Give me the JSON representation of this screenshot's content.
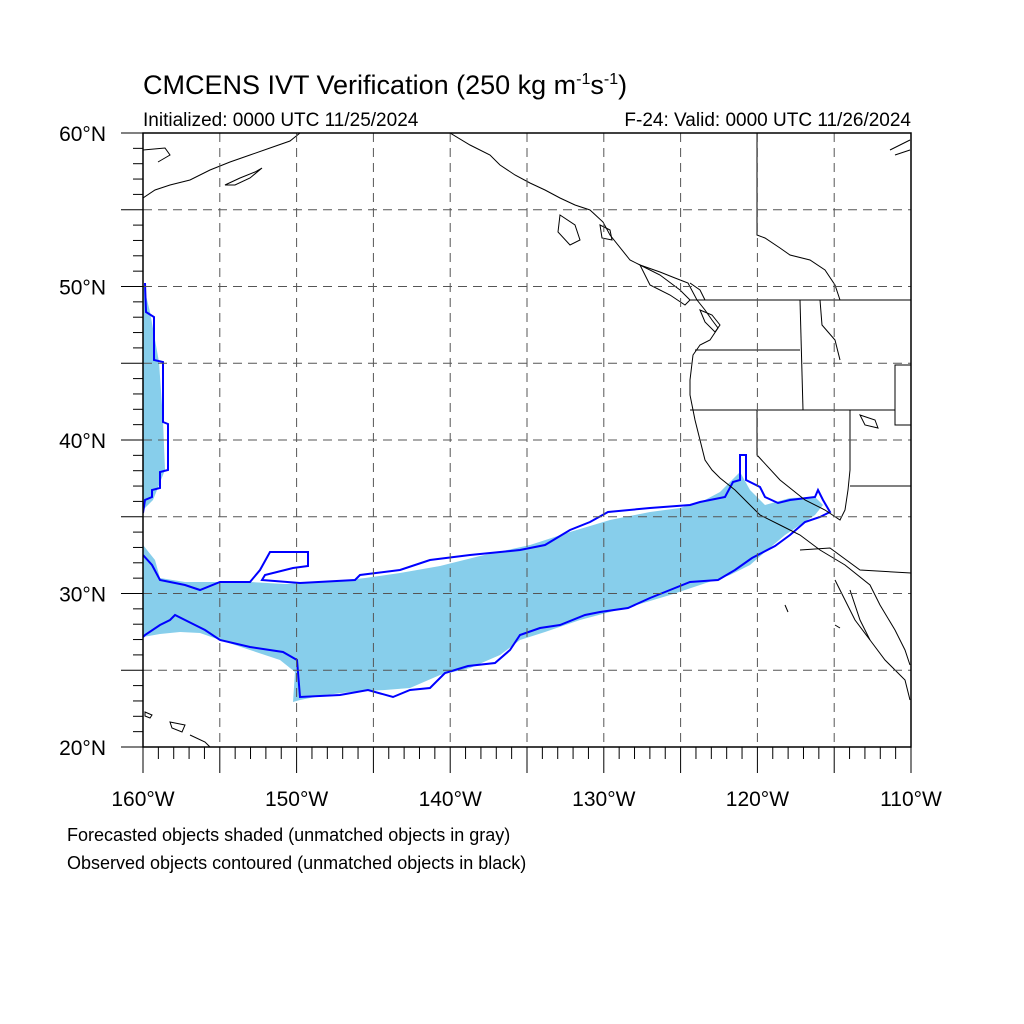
{
  "header": {
    "title_main": "CMCENS IVT Verification (250 kg m",
    "title_sup1": "-1",
    "title_mid": "s",
    "title_sup2": "-1",
    "title_end": ")",
    "initialized": "Initialized: 0000 UTC 11/25/2024",
    "valid": "F-24: Valid: 0000 UTC 11/26/2024"
  },
  "axes": {
    "lat_labels": [
      {
        "lat": 60,
        "label": "60°N"
      },
      {
        "lat": 50,
        "label": "50°N"
      },
      {
        "lat": 40,
        "label": "40°N"
      },
      {
        "lat": 30,
        "label": "30°N"
      },
      {
        "lat": 20,
        "label": "20°N"
      }
    ],
    "lon_labels": [
      {
        "lon": -160,
        "label": "160°W"
      },
      {
        "lon": -150,
        "label": "150°W"
      },
      {
        "lon": -140,
        "label": "140°W"
      },
      {
        "lon": -130,
        "label": "130°W"
      },
      {
        "lon": -120,
        "label": "120°W"
      },
      {
        "lon": -110,
        "label": "110°W"
      }
    ],
    "lon_range": [
      -160,
      -110
    ],
    "lat_range": [
      20,
      60
    ],
    "grid_spacing_deg": 5,
    "grid": "dashed"
  },
  "legend": {
    "line1": "Forecasted objects shaded (unmatched objects in gray)",
    "line2": "Observed objects contoured (unmatched objects in black)"
  },
  "colors": {
    "forecast_fill": "#87ceeb",
    "observed_contour": "#0000ff",
    "coastline": "#000000",
    "grid": "#555555"
  }
}
